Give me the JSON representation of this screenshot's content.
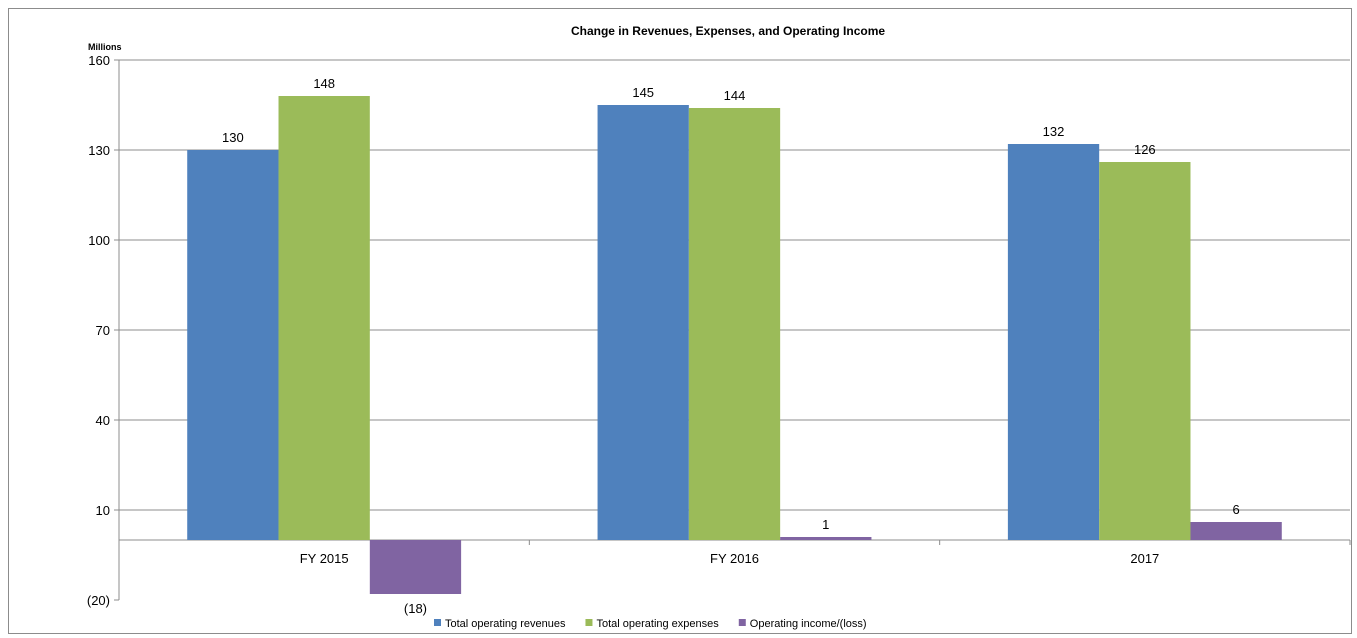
{
  "chart_data": {
    "type": "bar",
    "title": "Change in Revenues, Expenses, and Operating Income",
    "units_label": "Millions",
    "categories": [
      "FY 2015",
      "FY 2016",
      "2017"
    ],
    "series": [
      {
        "name": "Total operating revenues",
        "color": "#4f81bd",
        "values": [
          130,
          145,
          132
        ],
        "labels": [
          "130",
          "145",
          "132"
        ]
      },
      {
        "name": "Total operating expenses",
        "color": "#9bbb59",
        "values": [
          148,
          144,
          126
        ],
        "labels": [
          "148",
          "144",
          "126"
        ]
      },
      {
        "name": "Operating income/(loss)",
        "color": "#8064a2",
        "values": [
          -18,
          1,
          6
        ],
        "labels": [
          "(18)",
          "1",
          "6"
        ]
      }
    ],
    "ylim": [
      -20,
      160
    ],
    "yticks": [
      -20,
      10,
      40,
      70,
      100,
      130,
      160
    ],
    "ytick_labels": [
      "(20)",
      "10",
      "40",
      "70",
      "100",
      "130",
      "160"
    ],
    "grid": true,
    "legend_position": "bottom"
  }
}
